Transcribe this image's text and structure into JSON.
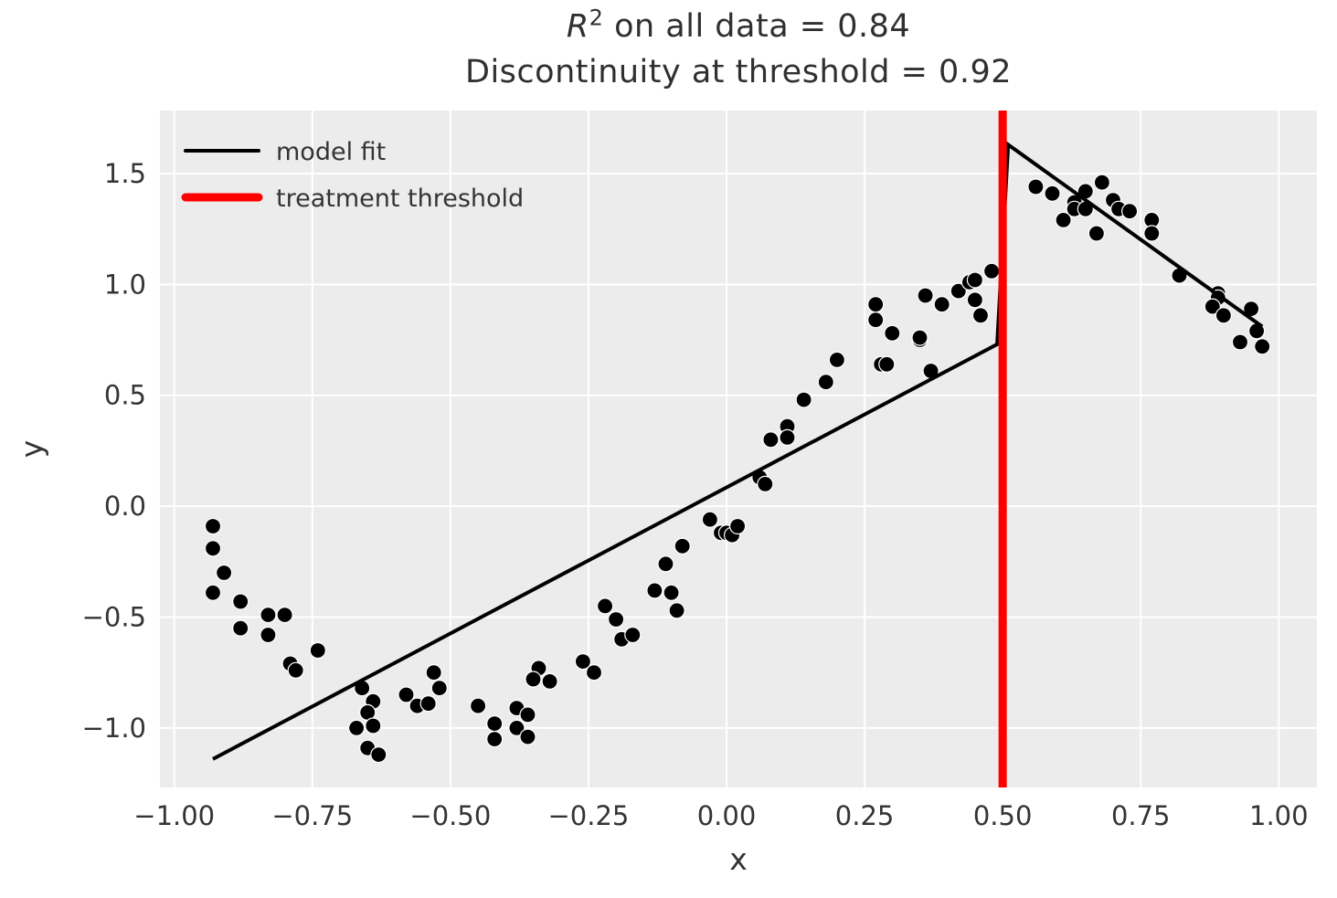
{
  "title": {
    "r_symbol": "R",
    "exponent": "2",
    "line1_rest": " on all data = 0.84",
    "line2": "Discontinuity at threshold = 0.92"
  },
  "legend": {
    "items": [
      {
        "label": "model fit",
        "color": "#000000",
        "sample_width": 4
      },
      {
        "label": "treatment threshold",
        "color": "#ff0000",
        "sample_width": 9
      }
    ]
  },
  "colors": {
    "figure_bg": "#ffffff",
    "axes_bg": "#ececec",
    "grid": "#ffffff",
    "scatter": "#000000",
    "fit_line": "#000000",
    "threshold": "#ff0000",
    "text": "#343434"
  },
  "chart_data": {
    "type": "scatter",
    "title": "R^2 on all data = 0.84\nDiscontinuity at threshold = 0.92",
    "xlabel": "x",
    "ylabel": "y",
    "xlim": [
      -1.026,
      1.069
    ],
    "ylim": [
      -1.268,
      1.784
    ],
    "grid": true,
    "legend_position": "upper left",
    "x_ticks": [
      {
        "value": -1.0,
        "label": "−1.00"
      },
      {
        "value": -0.75,
        "label": "−0.75"
      },
      {
        "value": -0.5,
        "label": "−0.50"
      },
      {
        "value": -0.25,
        "label": "−0.25"
      },
      {
        "value": 0.0,
        "label": "0.00"
      },
      {
        "value": 0.25,
        "label": "0.25"
      },
      {
        "value": 0.5,
        "label": "0.50"
      },
      {
        "value": 0.75,
        "label": "0.75"
      },
      {
        "value": 1.0,
        "label": "1.00"
      }
    ],
    "y_ticks": [
      {
        "value": -1.0,
        "label": "−1.0"
      },
      {
        "value": -0.5,
        "label": "−0.5"
      },
      {
        "value": 0.0,
        "label": "0.0"
      },
      {
        "value": 0.5,
        "label": "0.5"
      },
      {
        "value": 1.0,
        "label": "1.0"
      },
      {
        "value": 1.5,
        "label": "1.5"
      }
    ],
    "threshold_x": 0.5,
    "fit_line": [
      [
        -0.93,
        -1.14
      ],
      [
        0.49,
        0.73
      ],
      [
        0.51,
        1.63
      ],
      [
        0.97,
        0.81
      ]
    ],
    "scatter_points": [
      [
        -0.93,
        -0.09
      ],
      [
        -0.93,
        -0.19
      ],
      [
        -0.91,
        -0.3
      ],
      [
        -0.93,
        -0.39
      ],
      [
        -0.88,
        -0.43
      ],
      [
        -0.83,
        -0.49
      ],
      [
        -0.8,
        -0.49
      ],
      [
        -0.88,
        -0.55
      ],
      [
        -0.83,
        -0.58
      ],
      [
        -0.74,
        -0.65
      ],
      [
        -0.79,
        -0.71
      ],
      [
        -0.78,
        -0.74
      ],
      [
        -0.66,
        -0.82
      ],
      [
        -0.64,
        -0.88
      ],
      [
        -0.65,
        -0.93
      ],
      [
        -0.67,
        -1.0
      ],
      [
        -0.64,
        -0.99
      ],
      [
        -0.65,
        -1.09
      ],
      [
        -0.63,
        -1.12
      ],
      [
        -0.58,
        -0.85
      ],
      [
        -0.56,
        -0.9
      ],
      [
        -0.54,
        -0.89
      ],
      [
        -0.53,
        -0.75
      ],
      [
        -0.52,
        -0.82
      ],
      [
        -0.45,
        -0.9
      ],
      [
        -0.42,
        -0.98
      ],
      [
        -0.42,
        -1.05
      ],
      [
        -0.38,
        -0.91
      ],
      [
        -0.36,
        -0.94
      ],
      [
        -0.38,
        -1.0
      ],
      [
        -0.36,
        -1.04
      ],
      [
        -0.34,
        -0.73
      ],
      [
        -0.35,
        -0.78
      ],
      [
        -0.32,
        -0.79
      ],
      [
        -0.26,
        -0.7
      ],
      [
        -0.24,
        -0.75
      ],
      [
        -0.22,
        -0.45
      ],
      [
        -0.2,
        -0.51
      ],
      [
        -0.19,
        -0.6
      ],
      [
        -0.17,
        -0.58
      ],
      [
        -0.13,
        -0.38
      ],
      [
        -0.11,
        -0.26
      ],
      [
        -0.1,
        -0.39
      ],
      [
        -0.09,
        -0.47
      ],
      [
        -0.08,
        -0.18
      ],
      [
        -0.03,
        -0.06
      ],
      [
        -0.01,
        -0.12
      ],
      [
        0.0,
        -0.12
      ],
      [
        0.01,
        -0.13
      ],
      [
        0.02,
        -0.09
      ],
      [
        0.06,
        0.13
      ],
      [
        0.07,
        0.1
      ],
      [
        0.08,
        0.3
      ],
      [
        0.11,
        0.36
      ],
      [
        0.11,
        0.31
      ],
      [
        0.14,
        0.48
      ],
      [
        0.18,
        0.56
      ],
      [
        0.2,
        0.66
      ],
      [
        0.27,
        0.91
      ],
      [
        0.27,
        0.84
      ],
      [
        0.3,
        0.78
      ],
      [
        0.28,
        0.64
      ],
      [
        0.29,
        0.64
      ],
      [
        0.35,
        0.75
      ],
      [
        0.35,
        0.76
      ],
      [
        0.36,
        0.95
      ],
      [
        0.39,
        0.91
      ],
      [
        0.37,
        0.61
      ],
      [
        0.42,
        0.97
      ],
      [
        0.44,
        1.01
      ],
      [
        0.45,
        1.02
      ],
      [
        0.45,
        0.93
      ],
      [
        0.46,
        0.86
      ],
      [
        0.48,
        1.06
      ],
      [
        0.56,
        1.44
      ],
      [
        0.59,
        1.41
      ],
      [
        0.61,
        1.29
      ],
      [
        0.63,
        1.37
      ],
      [
        0.63,
        1.34
      ],
      [
        0.65,
        1.42
      ],
      [
        0.65,
        1.34
      ],
      [
        0.67,
        1.23
      ],
      [
        0.68,
        1.46
      ],
      [
        0.7,
        1.38
      ],
      [
        0.71,
        1.34
      ],
      [
        0.73,
        1.33
      ],
      [
        0.77,
        1.29
      ],
      [
        0.77,
        1.23
      ],
      [
        0.82,
        1.04
      ],
      [
        0.89,
        0.96
      ],
      [
        0.89,
        0.94
      ],
      [
        0.88,
        0.9
      ],
      [
        0.9,
        0.86
      ],
      [
        0.95,
        0.89
      ],
      [
        0.96,
        0.79
      ],
      [
        0.93,
        0.74
      ],
      [
        0.97,
        0.72
      ]
    ]
  }
}
